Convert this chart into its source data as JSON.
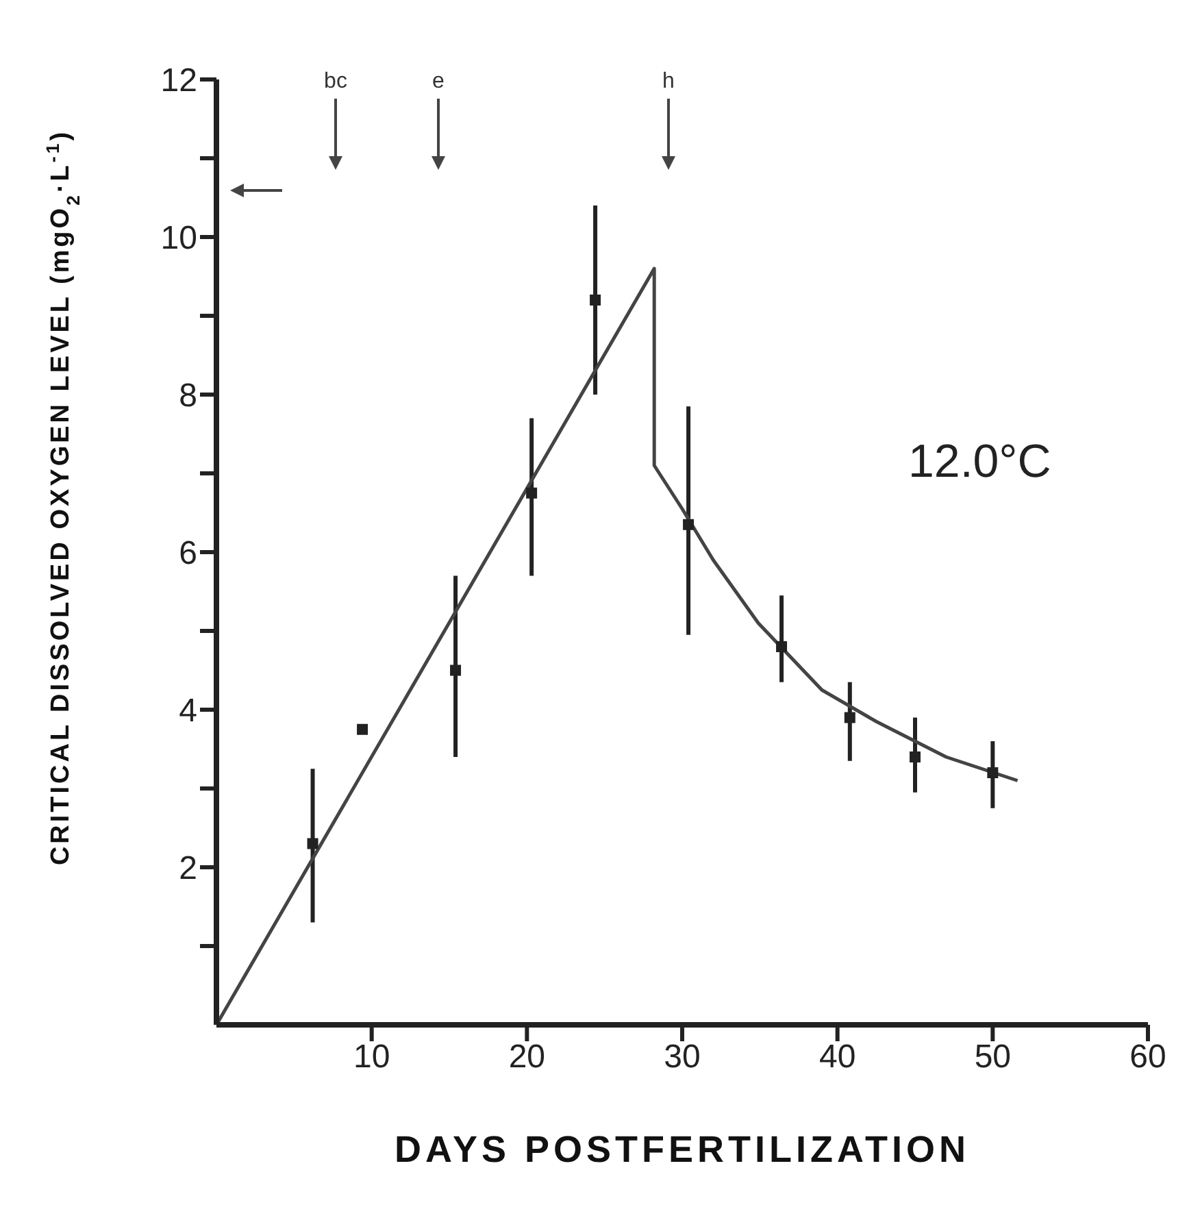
{
  "chart_data": {
    "type": "scatter",
    "xlabel": "DAYS POSTFERTILIZATION",
    "ylabel": "CRITICAL DISSOLVED OXYGEN LEVEL (mgO$_{2}$·L$^{-1}$)",
    "xlim": [
      0,
      60
    ],
    "xticks": [
      10,
      20,
      30,
      40,
      50,
      60
    ],
    "ylim": [
      0,
      12
    ],
    "yticks": [
      {
        "value": 1,
        "label": null
      },
      2,
      {
        "value": 3,
        "label": null
      },
      4,
      {
        "value": 5,
        "label": null
      },
      6,
      {
        "value": 7,
        "label": null
      },
      8,
      {
        "value": 9,
        "label": null
      },
      10,
      {
        "value": 11,
        "label": null
      },
      12
    ],
    "grid": false,
    "series": [
      {
        "color": "#222222",
        "marker": "square",
        "x": [
          6.2,
          9.4,
          15.4,
          20.3,
          24.4,
          30.4,
          36.4,
          40.8,
          45.0,
          50.0
        ],
        "values": [
          2.3,
          3.75,
          4.5,
          6.75,
          9.2,
          6.35,
          4.8,
          3.9,
          3.4,
          3.2
        ],
        "errors": [
          [
            1.3,
            3.25
          ],
          null,
          [
            3.4,
            5.7
          ],
          [
            5.7,
            7.7
          ],
          [
            8.0,
            10.4
          ],
          [
            4.95,
            7.85
          ],
          [
            4.35,
            5.45
          ],
          [
            3.35,
            4.35
          ],
          [
            2.95,
            3.9
          ],
          [
            2.75,
            3.6
          ]
        ]
      },
      {
        "type": "line",
        "color": "#444444",
        "marker": "none",
        "line_style": "solid",
        "x": [
          0,
          28.2,
          28.2,
          30,
          32,
          34.9,
          39,
          42.5,
          47,
          51.6
        ],
        "values": [
          0,
          9.6,
          7.1,
          6.55,
          5.9,
          5.1,
          4.25,
          3.85,
          3.4,
          3.1
        ]
      }
    ],
    "annotations": [
      "bc",
      "e",
      "h",
      "12.0°C"
    ]
  }
}
